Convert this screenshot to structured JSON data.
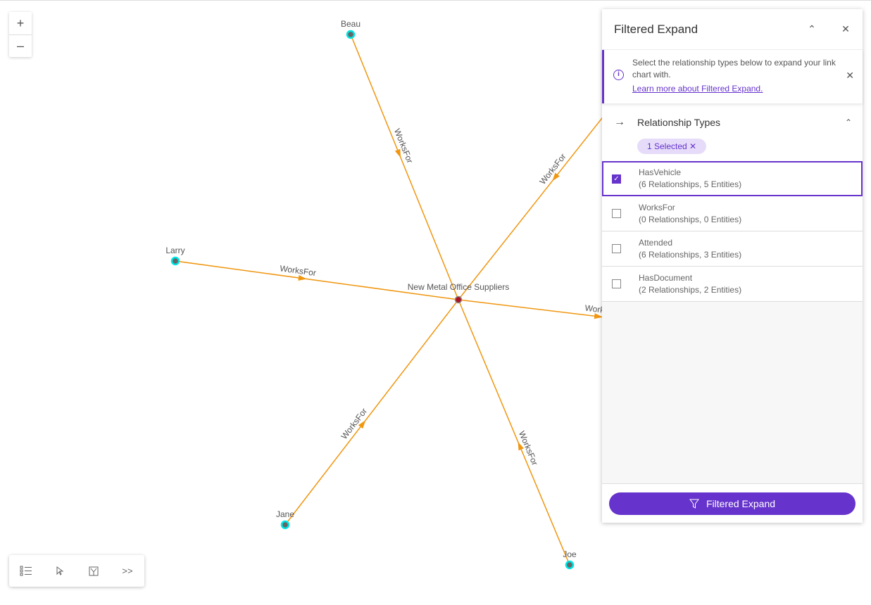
{
  "graph": {
    "center": "New Metal Office Suppliers",
    "nodes": [
      "Beau",
      "Larry",
      "Jane",
      "Joe"
    ],
    "edge_label": "WorksFor",
    "edge_color": "#f0960f",
    "node_color": "#00e5e5",
    "center_color": "#b01020"
  },
  "zoom": {
    "in": "+",
    "out": "–"
  },
  "panel": {
    "title": "Filtered Expand",
    "notice": {
      "text": "Select the relationship types below to expand your link chart with.",
      "link": "Learn more about Filtered Expand."
    },
    "section": "Relationship Types",
    "chip": "1 Selected",
    "items": [
      {
        "name": "HasVehicle",
        "detail": "(6 Relationships, 5 Entities)",
        "checked": true
      },
      {
        "name": "WorksFor",
        "detail": "(0 Relationships, 0 Entities)",
        "checked": false
      },
      {
        "name": "Attended",
        "detail": "(6 Relationships, 3 Entities)",
        "checked": false
      },
      {
        "name": "HasDocument",
        "detail": "(2 Relationships, 2 Entities)",
        "checked": false
      }
    ],
    "button": "Filtered Expand",
    "accent": "#6633cc"
  }
}
